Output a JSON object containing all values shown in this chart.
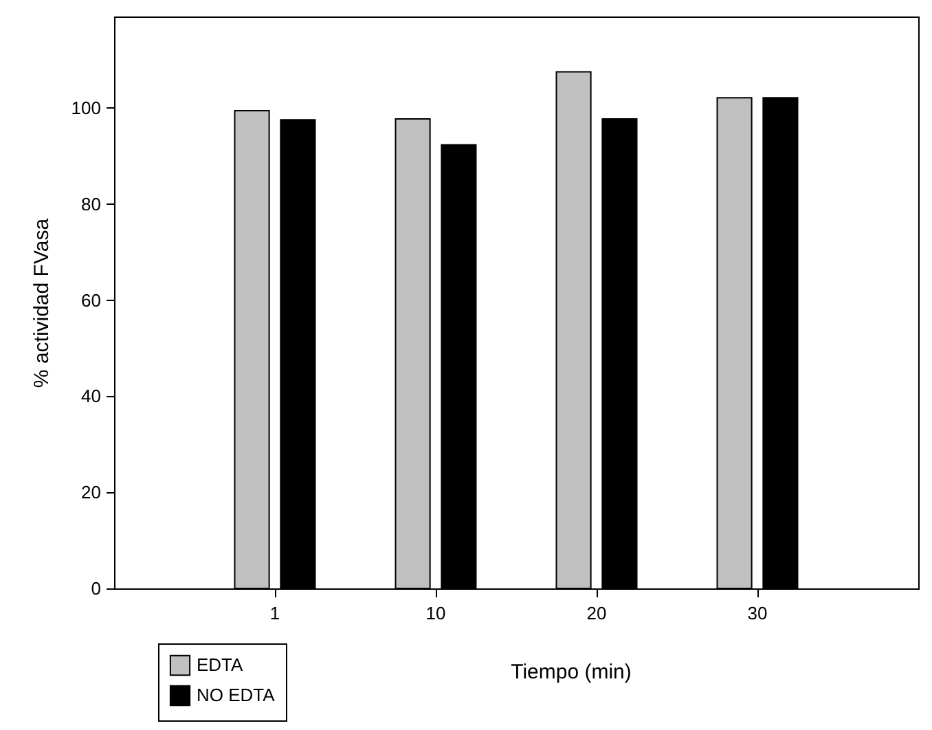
{
  "chart_data": {
    "type": "bar",
    "xlabel": "Tiempo (min)",
    "ylabel": "% actividad FVasa",
    "categories": [
      "1",
      "10",
      "20",
      "30"
    ],
    "series": [
      {
        "name": "EDTA",
        "color": "#c0c0c0",
        "values": [
          99.4,
          97.7,
          107.5,
          102.1
        ]
      },
      {
        "name": "NO EDTA",
        "color": "#000000",
        "values": [
          97.5,
          92.3,
          97.7,
          102.1
        ]
      }
    ],
    "ylim": [
      0,
      119
    ],
    "yticks": [
      0,
      20,
      40,
      60,
      80,
      100
    ],
    "grid": false,
    "legend": "bottom left"
  }
}
